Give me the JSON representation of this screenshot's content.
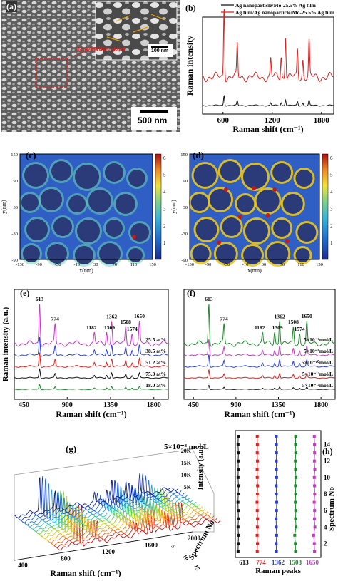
{
  "figure": {
    "panels": [
      "(a)",
      "(b)",
      "(c)",
      "(d)",
      "(e)",
      "(f)",
      "(g)",
      "(h)"
    ],
    "a": {
      "scale_main": "500 nm",
      "scale_inset": "100 nm",
      "inset_label": "nanoparticle gaps"
    },
    "colors": {
      "black": "#111111",
      "red": "#e01f1f",
      "blue": "#2a3fd6",
      "green": "#1a8a2a",
      "magenta": "#c23ac2",
      "navy": "#1c2a8c"
    }
  },
  "chart_data": [
    {
      "panel": "b",
      "type": "line",
      "xlabel": "Raman shift (cm⁻¹)",
      "ylabel": "Raman intensity",
      "xlim": [
        350,
        1950
      ],
      "xticks": [
        600,
        1200,
        1800
      ],
      "legend": "top",
      "series": [
        {
          "name": "Ag nanoparticle/Mo-25.5% Ag film",
          "color": "#111111",
          "offset": 0,
          "scale": 0.12
        },
        {
          "name": "Ag film/Ag nanoparticle/Mo-25.5% Ag film",
          "color": "#e01f1f",
          "offset": 0.18,
          "scale": 1.0
        }
      ],
      "peaks": [
        613,
        774,
        1182,
        1309,
        1362,
        1508,
        1574,
        1650
      ]
    },
    {
      "panel": "c",
      "type": "heatmap",
      "xlabel": "x(nm)",
      "ylabel": "y(nm)",
      "xticks": [
        -130,
        -90,
        -50,
        -10,
        30,
        70,
        110,
        150
      ],
      "yticks": [
        150,
        90,
        30,
        -30,
        -90
      ],
      "colorbar": [
        1,
        2,
        3,
        4,
        5,
        6
      ]
    },
    {
      "panel": "d",
      "type": "heatmap",
      "xlabel": "x(nm)",
      "ylabel": "y(nm)",
      "xticks": [
        -130,
        -90,
        -50,
        -10,
        30,
        70,
        110,
        150
      ],
      "yticks": [
        150,
        90,
        30,
        -30,
        -90
      ],
      "colorbar": [
        1,
        2,
        3,
        4,
        5,
        6
      ]
    },
    {
      "panel": "e",
      "type": "line",
      "xlabel": "Raman shift (cm⁻¹)",
      "ylabel": "Raman intensity (a.u.)",
      "xlim": [
        350,
        1950
      ],
      "xticks": [
        450,
        900,
        1350,
        1800
      ],
      "peak_labels": [
        "613",
        "774",
        "1182",
        "1309",
        "1362",
        "1508",
        "1574",
        "1650"
      ],
      "series": [
        {
          "name": "25.5 at%",
          "color": "#c23ac2",
          "scale": 1.0
        },
        {
          "name": "38.5 at%",
          "color": "#2a3fd6",
          "scale": 0.45
        },
        {
          "name": "51.2 at%",
          "color": "#e01f1f",
          "scale": 0.35
        },
        {
          "name": "75.0 at%",
          "color": "#111111",
          "scale": 0.22
        },
        {
          "name": "18.0 at%",
          "color": "#1a8a2a",
          "scale": 0.12
        }
      ]
    },
    {
      "panel": "f",
      "type": "line",
      "xlabel": "Raman shift (cm⁻¹)",
      "xlim": [
        350,
        1950
      ],
      "xticks": [
        450,
        900,
        1350,
        1800
      ],
      "peak_labels": [
        "613",
        "774",
        "1182",
        "1309",
        "1362",
        "1508",
        "1574",
        "1650"
      ],
      "series": [
        {
          "name": "5×10⁻⁶mol/L",
          "color": "#1a8a2a",
          "scale": 1.0
        },
        {
          "name": "5×10⁻⁸mol/L",
          "color": "#c23ac2",
          "scale": 0.4
        },
        {
          "name": "5×10⁻¹⁰mol/L",
          "color": "#2a3fd6",
          "scale": 0.3
        },
        {
          "name": "5×10⁻¹²mol/L",
          "color": "#e01f1f",
          "scale": 0.2
        },
        {
          "name": "5×10⁻¹⁴mol/L",
          "color": "#111111",
          "scale": 0.1
        }
      ]
    },
    {
      "panel": "g",
      "type": "line",
      "title": "5×10⁻⁸ mol/L",
      "xlabel": "Raman shift (cm⁻¹)",
      "ylabel": "Intensity (a.u.)",
      "zlabel": "Spectrum No",
      "xticks": [
        400,
        800,
        1200,
        1600,
        2000
      ],
      "yticks": [
        "5K",
        "10K",
        "15K",
        "20K"
      ],
      "zticks": [
        5,
        10,
        15
      ],
      "spectra_count": 15
    },
    {
      "panel": "h",
      "type": "scatter",
      "xlabel": "Raman peaks",
      "ylabel": "Spectrum No",
      "yticks": [
        2,
        4,
        6,
        8,
        10,
        12,
        14
      ],
      "categories": [
        "613",
        "774",
        "1362",
        "1508",
        "1650"
      ],
      "category_colors": [
        "#111111",
        "#e01f1f",
        "#2a3fd6",
        "#1a8a2a",
        "#c23ac2"
      ],
      "spectrum_no": [
        1,
        2,
        3,
        4,
        5,
        6,
        7,
        8,
        9,
        10,
        11,
        12,
        13,
        14,
        15
      ],
      "relative_positions": [
        [
          0.1,
          0.12,
          0.14,
          0.1,
          0.13,
          0.11,
          0.09,
          0.12,
          0.14,
          0.1,
          0.12,
          0.11,
          0.13,
          0.1,
          0.12
        ],
        [
          0.3,
          0.32,
          0.29,
          0.31,
          0.33,
          0.3,
          0.28,
          0.31,
          0.33,
          0.3,
          0.29,
          0.32,
          0.3,
          0.31,
          0.3
        ],
        [
          0.5,
          0.48,
          0.52,
          0.49,
          0.47,
          0.51,
          0.53,
          0.5,
          0.48,
          0.52,
          0.5,
          0.49,
          0.51,
          0.5,
          0.49
        ],
        [
          0.7,
          0.68,
          0.62,
          0.74,
          0.7,
          0.72,
          0.68,
          0.71,
          0.69,
          0.73,
          0.7,
          0.68,
          0.72,
          0.7,
          0.71
        ],
        [
          0.88,
          0.86,
          0.8,
          0.92,
          0.87,
          0.89,
          0.85,
          0.9,
          0.88,
          0.86,
          0.91,
          0.87,
          0.89,
          0.88,
          0.86
        ]
      ]
    }
  ]
}
